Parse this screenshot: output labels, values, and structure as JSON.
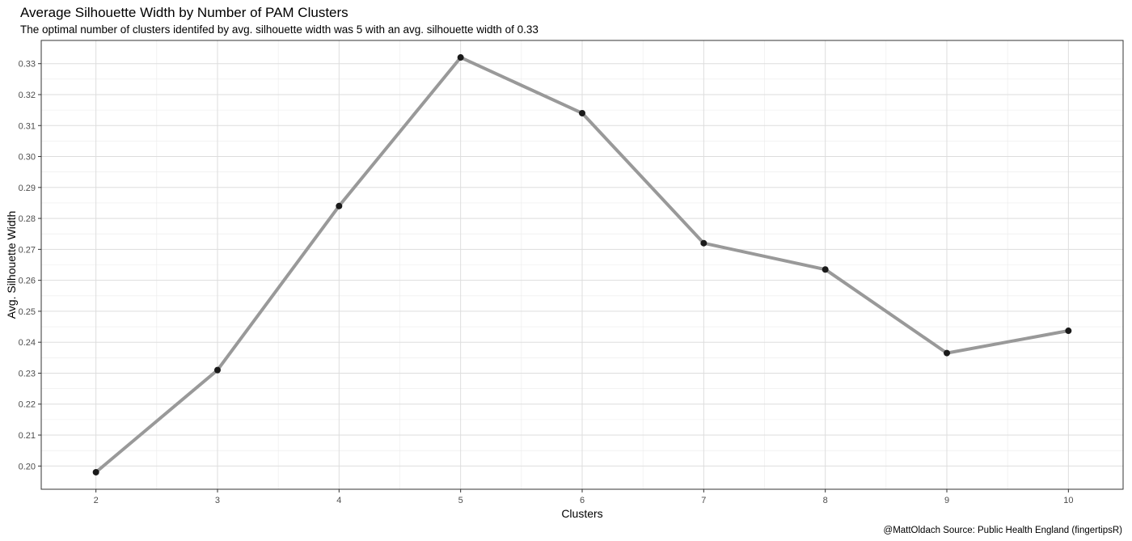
{
  "chart_data": {
    "type": "line",
    "title": "Average Silhouette Width by Number of PAM Clusters",
    "subtitle": "The optimal number of clusters identifed by avg. silhouette width was 5 with an avg. silhouette width of 0.33",
    "caption": "@MattOldach Source: Public Health England (fingertipsR)",
    "xlabel": "Clusters",
    "ylabel": "Avg. Silhouette Width",
    "x": [
      2,
      3,
      4,
      5,
      6,
      7,
      8,
      9,
      10
    ],
    "y": [
      0.198,
      0.231,
      0.284,
      0.332,
      0.314,
      0.272,
      0.2635,
      0.2365,
      0.2437
    ],
    "xlim": [
      1.55,
      10.45
    ],
    "ylim": [
      0.1925,
      0.3375
    ],
    "xticks": [
      "2",
      "3",
      "4",
      "5",
      "6",
      "7",
      "8",
      "9",
      "10"
    ],
    "yticks": [
      "0.20",
      "0.21",
      "0.22",
      "0.23",
      "0.24",
      "0.25",
      "0.26",
      "0.27",
      "0.28",
      "0.29",
      "0.30",
      "0.31",
      "0.32",
      "0.33"
    ],
    "grid": true,
    "colors": {
      "line": "#999999",
      "point": "#1a1a1a",
      "grid": "#ebebeb",
      "border": "#333333"
    }
  }
}
